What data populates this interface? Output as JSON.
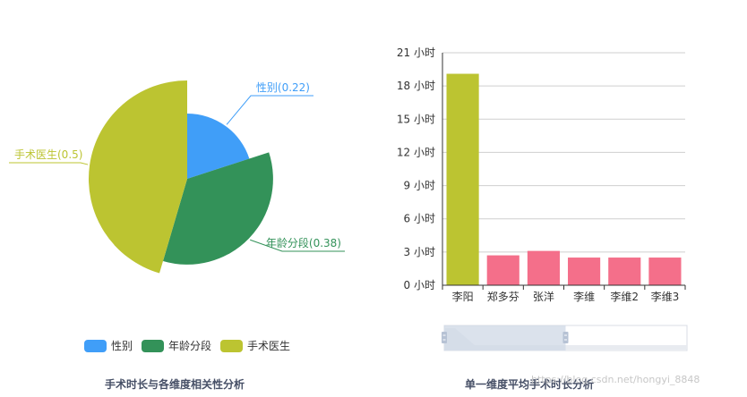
{
  "pie_chart": {
    "caption": "手术时长与各维度相关性分析",
    "legend": [
      {
        "label": "性别",
        "color": "#409ef8"
      },
      {
        "label": "年龄分段",
        "color": "#339259"
      },
      {
        "label": "手术医生",
        "color": "#bcc431"
      }
    ]
  },
  "bar_chart": {
    "caption": "单一维度平均手术时长分析",
    "y_unit": "小时",
    "y_ticks": [
      "21 小时",
      "18 小时",
      "15 小时",
      "12 小时",
      "9 小时",
      "6 小时",
      "3 小时",
      "0 小时"
    ],
    "colors": {
      "first": "#bcc431",
      "rest": "#f46f8a"
    },
    "slider": {
      "start_fraction": 0.0,
      "end_fraction": 0.5
    }
  },
  "watermark": "https://blog.csdn.net/hongyi_8848",
  "chart_data": [
    {
      "type": "pie",
      "variant": "rose",
      "series": [
        {
          "name": "性别",
          "value": 0.22,
          "label": "性别(0.22)"
        },
        {
          "name": "年龄分段",
          "value": 0.38,
          "label": "年龄分段(0.38)"
        },
        {
          "name": "手术医生",
          "value": 0.5,
          "label": "手术医生(0.5)"
        }
      ],
      "legend": "bottom"
    },
    {
      "type": "bar",
      "categories": [
        "李阳",
        "郑多芬",
        "张洋",
        "李维",
        "李维2",
        "李维3"
      ],
      "values": [
        19.1,
        2.7,
        3.1,
        2.5,
        2.5,
        2.5
      ],
      "ylim": [
        0,
        21
      ],
      "grid": true
    }
  ]
}
